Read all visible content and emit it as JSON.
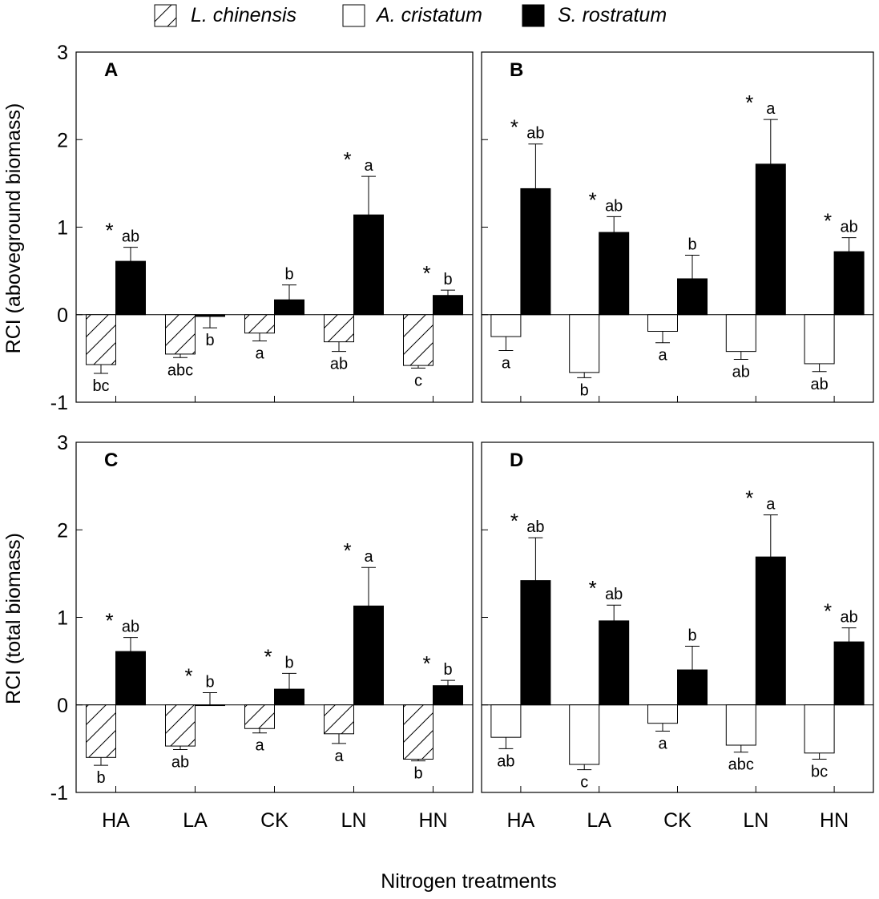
{
  "legend": [
    {
      "name": "L. chinensis",
      "fill": "hatch"
    },
    {
      "name": "A. cristatum",
      "fill": "white"
    },
    {
      "name": "S. rostratum",
      "fill": "black"
    }
  ],
  "xlabel": "Nitrogen treatments",
  "ylabels": {
    "top": "RCI (aboveground biomass)",
    "bottom": "RCI (total biomass)"
  },
  "chart_data": [
    {
      "panel": "A",
      "type": "bar",
      "ylabel": "RCI (aboveground biomass)",
      "xlabel": "Nitrogen treatments",
      "ylim": [
        -1,
        3
      ],
      "yticks": [
        -1,
        0,
        1,
        2,
        3
      ],
      "categories": [
        "HA",
        "LA",
        "CK",
        "LN",
        "HN"
      ],
      "series": [
        {
          "name": "L. chinensis",
          "fill": "hatch",
          "values": [
            -0.57,
            -0.45,
            -0.21,
            -0.31,
            -0.58
          ],
          "errors": [
            0.1,
            0.04,
            0.09,
            0.11,
            0.03
          ],
          "letters": [
            "bc",
            "abc",
            "a",
            "ab",
            "c"
          ]
        },
        {
          "name": "S. rostratum",
          "fill": "black",
          "values": [
            0.61,
            -0.02,
            0.17,
            1.14,
            0.22
          ],
          "errors": [
            0.16,
            0.13,
            0.17,
            0.44,
            0.06
          ],
          "letters": [
            "ab",
            "b",
            "b",
            "a",
            "b"
          ],
          "stars": [
            true,
            false,
            false,
            true,
            true
          ]
        }
      ]
    },
    {
      "panel": "B",
      "type": "bar",
      "ylabel": "",
      "xlabel": "Nitrogen treatments",
      "ylim": [
        -1,
        3
      ],
      "yticks": [
        -1,
        0,
        1,
        2,
        3
      ],
      "categories": [
        "HA",
        "LA",
        "CK",
        "LN",
        "HN"
      ],
      "series": [
        {
          "name": "A. cristatum",
          "fill": "white",
          "values": [
            -0.25,
            -0.66,
            -0.19,
            -0.42,
            -0.56
          ],
          "errors": [
            0.16,
            0.06,
            0.13,
            0.09,
            0.09
          ],
          "letters": [
            "a",
            "b",
            "a",
            "ab",
            "ab"
          ]
        },
        {
          "name": "S. rostratum",
          "fill": "black",
          "values": [
            1.44,
            0.94,
            0.41,
            1.72,
            0.72
          ],
          "errors": [
            0.51,
            0.18,
            0.27,
            0.51,
            0.16
          ],
          "letters": [
            "ab",
            "ab",
            "b",
            "a",
            "ab"
          ],
          "stars": [
            true,
            true,
            false,
            true,
            true
          ]
        }
      ]
    },
    {
      "panel": "C",
      "type": "bar",
      "ylabel": "RCI (total biomass)",
      "xlabel": "Nitrogen treatments",
      "ylim": [
        -1,
        3
      ],
      "yticks": [
        -1,
        0,
        1,
        2,
        3
      ],
      "categories": [
        "HA",
        "LA",
        "CK",
        "LN",
        "HN"
      ],
      "series": [
        {
          "name": "L. chinensis",
          "fill": "hatch",
          "values": [
            -0.6,
            -0.47,
            -0.27,
            -0.33,
            -0.62
          ],
          "errors": [
            0.09,
            0.04,
            0.05,
            0.11,
            0.02
          ],
          "letters": [
            "b",
            "ab",
            "a",
            "a",
            "b"
          ]
        },
        {
          "name": "S. rostratum",
          "fill": "black",
          "values": [
            0.61,
            0.0,
            0.18,
            1.13,
            0.22
          ],
          "errors": [
            0.16,
            0.14,
            0.18,
            0.44,
            0.06
          ],
          "letters": [
            "ab",
            "b",
            "b",
            "a",
            "b"
          ],
          "stars": [
            true,
            true,
            true,
            true,
            true
          ]
        }
      ]
    },
    {
      "panel": "D",
      "type": "bar",
      "ylabel": "",
      "xlabel": "Nitrogen treatments",
      "ylim": [
        -1,
        3
      ],
      "yticks": [
        -1,
        0,
        1,
        2,
        3
      ],
      "categories": [
        "HA",
        "LA",
        "CK",
        "LN",
        "HN"
      ],
      "series": [
        {
          "name": "A. cristatum",
          "fill": "white",
          "values": [
            -0.37,
            -0.68,
            -0.21,
            -0.46,
            -0.55
          ],
          "errors": [
            0.13,
            0.06,
            0.09,
            0.08,
            0.07
          ],
          "letters": [
            "ab",
            "c",
            "a",
            "abc",
            "bc"
          ]
        },
        {
          "name": "S. rostratum",
          "fill": "black",
          "values": [
            1.42,
            0.96,
            0.4,
            1.69,
            0.72
          ],
          "errors": [
            0.49,
            0.18,
            0.27,
            0.48,
            0.16
          ],
          "letters": [
            "ab",
            "ab",
            "b",
            "a",
            "ab"
          ],
          "stars": [
            true,
            true,
            false,
            true,
            true
          ]
        }
      ]
    }
  ]
}
